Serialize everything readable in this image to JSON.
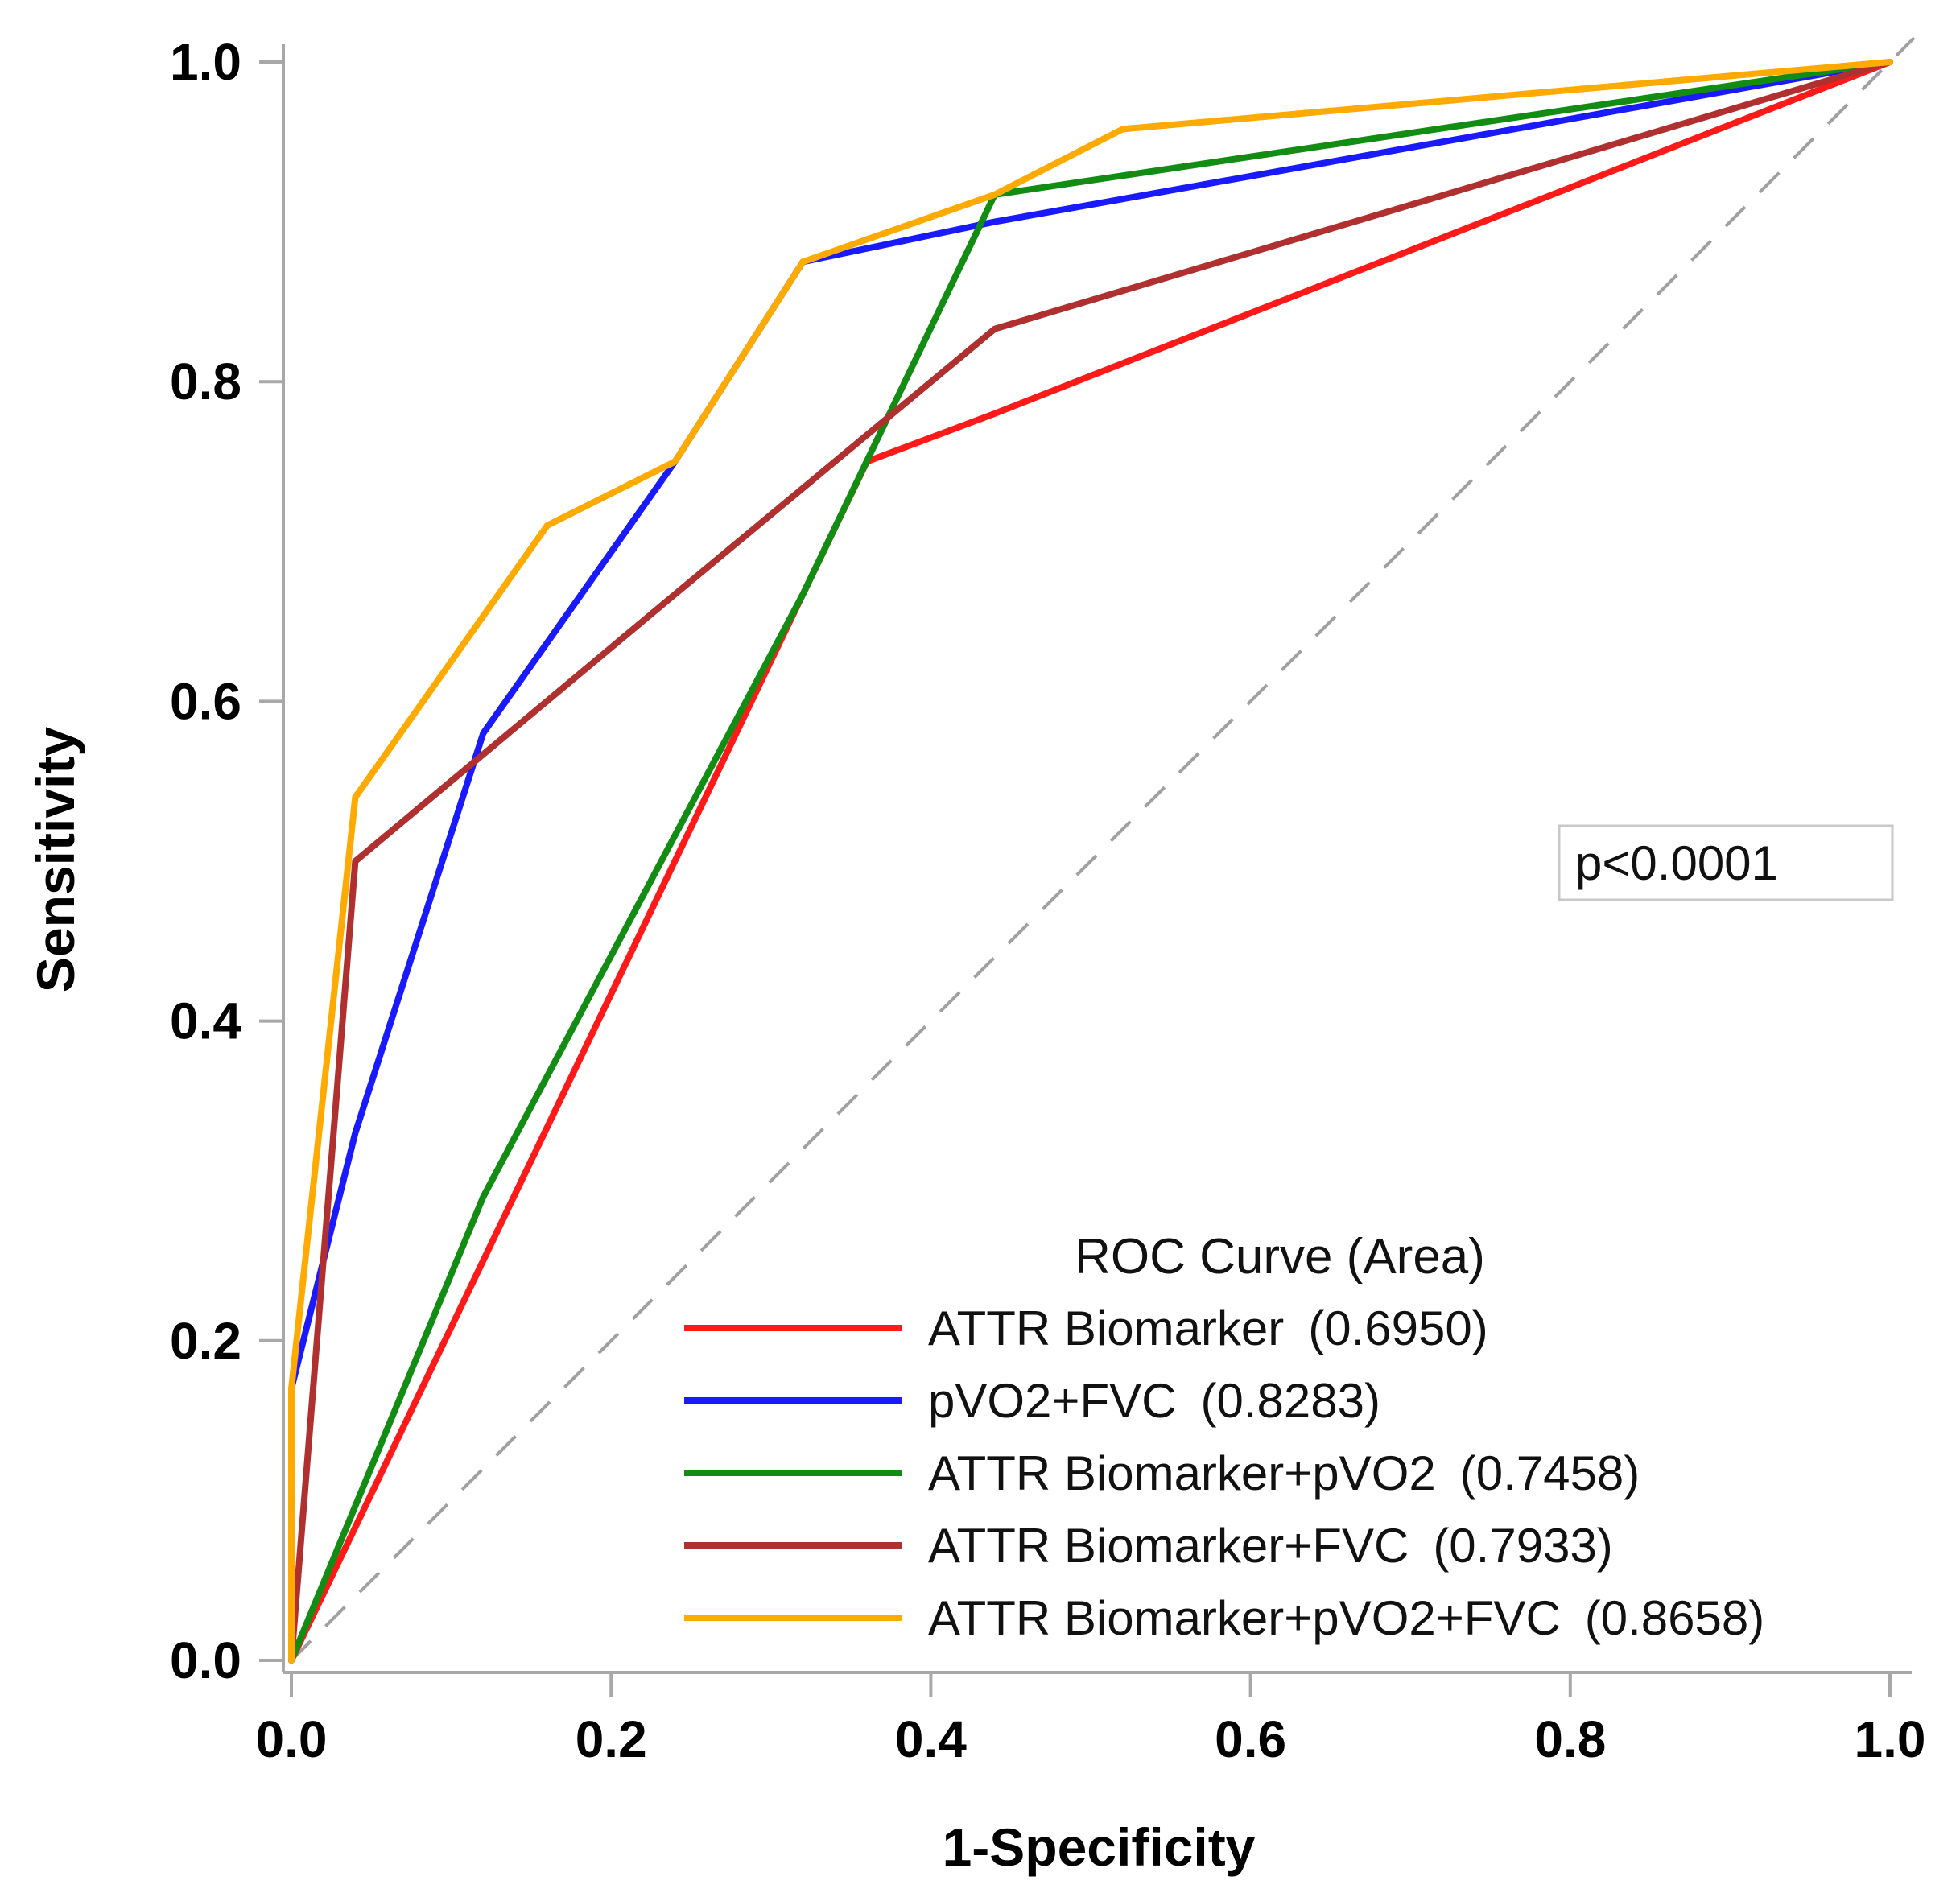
{
  "chart_data": {
    "type": "line",
    "title": "",
    "xlabel": "1-Specificity",
    "ylabel": "Sensitivity",
    "xlim": [
      0,
      1
    ],
    "ylim": [
      0,
      1
    ],
    "xticks": [
      "0.0",
      "0.2",
      "0.4",
      "0.6",
      "0.8",
      "1.0"
    ],
    "yticks": [
      "0.0",
      "0.2",
      "0.4",
      "0.6",
      "0.8",
      "1.0"
    ],
    "grid": false,
    "legend_title": "ROC Curve (Area)",
    "legend_position": "bottom-right",
    "annotation": "p<0.0001",
    "reference_line": {
      "x": [
        0,
        1
      ],
      "y": [
        0,
        1
      ],
      "style": "dashed",
      "color": "#a0a0a0"
    },
    "series": [
      {
        "name": "ATTR Biomarker",
        "area": "(0.6950)",
        "color": "#ff1a1a",
        "x": [
          0.0,
          0.0,
          0.32,
          0.36,
          0.44,
          1.0
        ],
        "y": [
          0.0,
          0.0,
          0.667,
          0.75,
          0.78,
          1.0
        ]
      },
      {
        "name": "pVO2+FVC",
        "area": "(0.8283)",
        "color": "#1a1aff",
        "x": [
          0.0,
          0.0,
          0.04,
          0.12,
          0.24,
          0.32,
          0.44,
          1.0
        ],
        "y": [
          0.0,
          0.17,
          0.33,
          0.58,
          0.75,
          0.875,
          0.9,
          1.0
        ]
      },
      {
        "name": "ATTR Biomarker+pVO2",
        "area": "(0.7458)",
        "color": "#138c13",
        "x": [
          0.0,
          0.0,
          0.12,
          0.32,
          0.44,
          1.0
        ],
        "y": [
          0.0,
          0.0,
          0.29,
          0.667,
          0.917,
          1.0
        ]
      },
      {
        "name": "ATTR Biomarker+FVC",
        "area": "(0.7933)",
        "color": "#b03030",
        "x": [
          0.0,
          0.0,
          0.04,
          0.24,
          0.44,
          1.0
        ],
        "y": [
          0.0,
          0.0,
          0.5,
          0.667,
          0.833,
          1.0
        ]
      },
      {
        "name": "ATTR Biomarker+pVO2+FVC",
        "area": "(0.8658)",
        "color": "#ffaa00",
        "x": [
          0.0,
          0.0,
          0.04,
          0.16,
          0.24,
          0.32,
          0.44,
          0.52,
          1.0
        ],
        "y": [
          0.0,
          0.17,
          0.54,
          0.71,
          0.75,
          0.875,
          0.917,
          0.958,
          1.0
        ]
      }
    ]
  }
}
